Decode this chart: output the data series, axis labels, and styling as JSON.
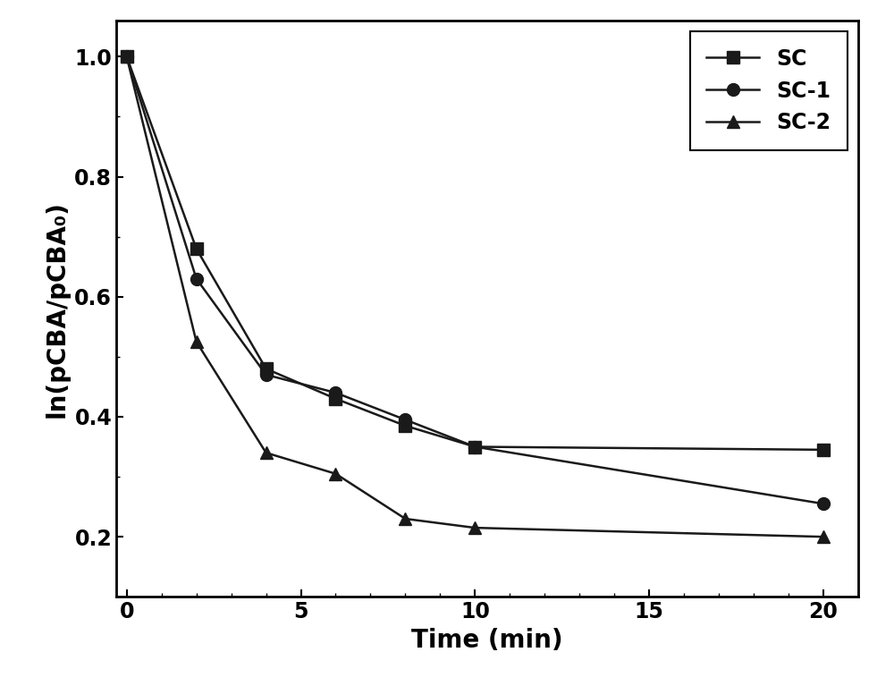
{
  "series": [
    {
      "label": "SC",
      "marker": "s",
      "x": [
        0,
        2,
        4,
        6,
        8,
        10,
        20
      ],
      "y": [
        1.0,
        0.68,
        0.48,
        0.43,
        0.385,
        0.35,
        0.345
      ]
    },
    {
      "label": "SC-1",
      "marker": "o",
      "x": [
        0,
        2,
        4,
        6,
        8,
        10,
        20
      ],
      "y": [
        1.0,
        0.63,
        0.47,
        0.44,
        0.395,
        0.35,
        0.255
      ]
    },
    {
      "label": "SC-2",
      "marker": "^",
      "x": [
        0,
        2,
        4,
        6,
        8,
        10,
        20
      ],
      "y": [
        1.0,
        0.525,
        0.34,
        0.305,
        0.23,
        0.215,
        0.2
      ]
    }
  ],
  "xlabel": "Time (min)",
  "ylabel": "ln(pCBA/pCBA₀)",
  "xlim": [
    -0.3,
    21.0
  ],
  "ylim": [
    0.1,
    1.06
  ],
  "xticks": [
    0,
    5,
    10,
    15,
    20
  ],
  "yticks": [
    0.2,
    0.4,
    0.6,
    0.8,
    1.0
  ],
  "line_color": "#1a1a1a",
  "marker_color": "#1a1a1a",
  "markersize": 10,
  "linewidth": 1.8,
  "legend_fontsize": 17,
  "axis_label_fontsize": 20,
  "tick_fontsize": 17,
  "legend_loc": "upper right"
}
